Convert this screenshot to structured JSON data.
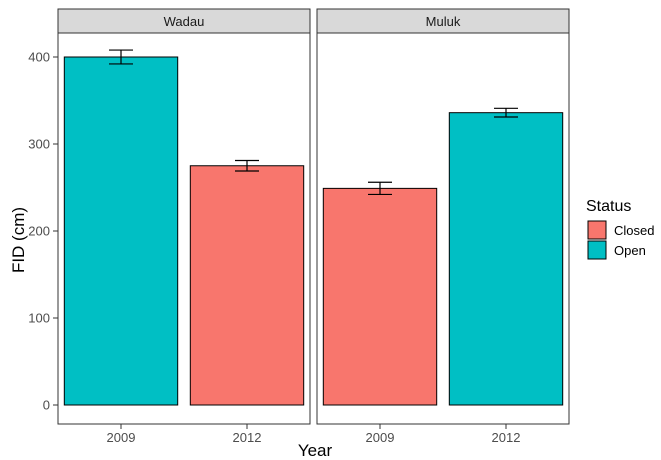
{
  "chart_data": {
    "type": "bar",
    "ylabel": "FID (cm)",
    "xlabel": "Year",
    "ylim": [
      0,
      425
    ],
    "yticks": [
      0,
      100,
      200,
      300,
      400
    ],
    "grid": false,
    "legend": {
      "title": "Status",
      "placement": "right",
      "entries": [
        {
          "label": "Closed",
          "color": "#F8766D"
        },
        {
          "label": "Open",
          "color": "#00BFC4"
        }
      ]
    },
    "facets": [
      {
        "name": "Wadau",
        "categories": [
          "2009",
          "2012"
        ],
        "values": [
          400,
          275
        ],
        "errors": [
          8,
          6
        ],
        "status": [
          "Open",
          "Closed"
        ]
      },
      {
        "name": "Muluk",
        "categories": [
          "2009",
          "2012"
        ],
        "values": [
          249,
          336
        ],
        "errors": [
          7,
          5
        ],
        "status": [
          "Closed",
          "Open"
        ]
      }
    ]
  }
}
